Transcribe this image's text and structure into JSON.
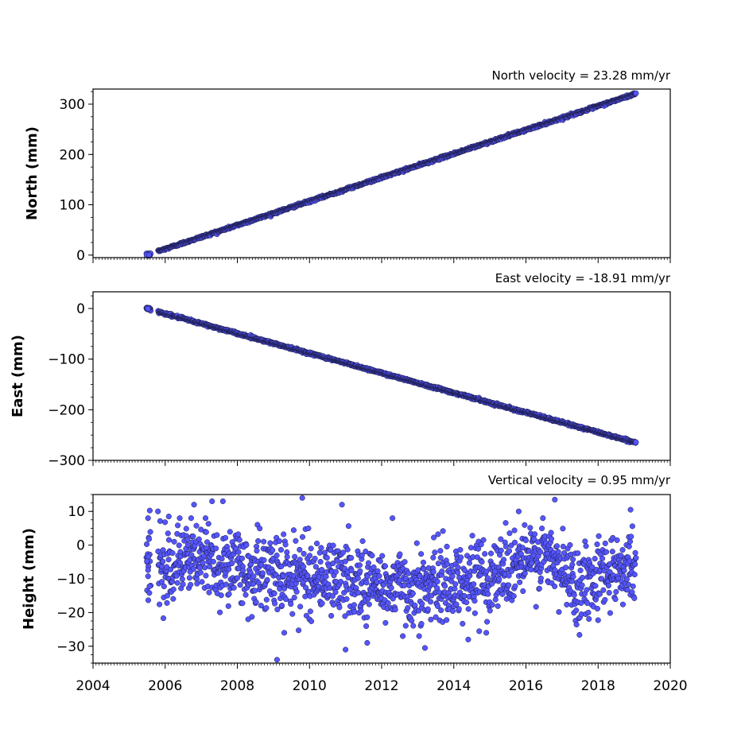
{
  "colors": {
    "marker_fill": "#5555ff",
    "marker_edge": "#1a1a40",
    "axes": "#000000",
    "background": "#ffffff"
  },
  "x_tick_labels": [
    "2004",
    "2006",
    "2008",
    "2010",
    "2012",
    "2014",
    "2016",
    "2018",
    "2020"
  ],
  "chart_data": [
    {
      "type": "scatter",
      "title": "North velocity = 23.28 mm/yr",
      "xlabel": "",
      "ylabel": "North (mm)",
      "xlim": [
        2004,
        2020
      ],
      "ylim": [
        -5,
        330
      ],
      "yticks": [
        0,
        100,
        200,
        300
      ],
      "ytick_labels": [
        "0",
        "100",
        "200",
        "300"
      ],
      "x_start": 2005.48,
      "x_end": 2019.05,
      "trend": {
        "velocity_mm_per_yr": 23.28,
        "value_at_start": 0,
        "value_at_end": 321
      },
      "gap": [
        2005.6,
        2005.8
      ],
      "scatter_sd": 1.2,
      "grid": false,
      "legend": "none"
    },
    {
      "type": "scatter",
      "title": "East velocity = -18.91 mm/yr",
      "xlabel": "",
      "ylabel": "East (mm)",
      "xlim": [
        2004,
        2020
      ],
      "ylim": [
        -300,
        33
      ],
      "yticks": [
        0,
        -100,
        -200,
        -300
      ],
      "ytick_labels": [
        "0",
        "−100",
        "−200",
        "−300"
      ],
      "x_start": 2005.48,
      "x_end": 2019.05,
      "trend": {
        "velocity_mm_per_yr": -18.91,
        "value_at_start": 0,
        "value_at_end": -265
      },
      "gap": [
        2005.6,
        2005.8
      ],
      "scatter_sd": 1.2,
      "grid": false,
      "legend": "none"
    },
    {
      "type": "scatter",
      "title": "Vertical velocity = 0.95 mm/yr",
      "xlabel": "",
      "ylabel": "Height (mm)",
      "xlim": [
        2004,
        2020
      ],
      "ylim": [
        -35,
        15
      ],
      "yticks": [
        10,
        0,
        -10,
        -20,
        -30
      ],
      "ytick_labels": [
        "10",
        "0",
        "−10",
        "−20",
        "−30"
      ],
      "x_start": 2005.48,
      "x_end": 2019.05,
      "trend": {
        "velocity_mm_per_yr": 0.95
      },
      "gap": [
        2005.6,
        2005.8
      ],
      "scatter_sd": 5.5,
      "height_mean_profile": [
        [
          2005.5,
          -6
        ],
        [
          2007,
          -4
        ],
        [
          2008.5,
          -8
        ],
        [
          2010,
          -9
        ],
        [
          2011,
          -10
        ],
        [
          2012,
          -12
        ],
        [
          2013,
          -13
        ],
        [
          2014,
          -11
        ],
        [
          2015,
          -9
        ],
        [
          2015.6,
          -6
        ],
        [
          2016.5,
          -3
        ],
        [
          2017,
          -8
        ],
        [
          2017.5,
          -12
        ],
        [
          2018,
          -8
        ],
        [
          2019,
          -6
        ]
      ],
      "outliers": [
        [
          2005.8,
          10
        ],
        [
          2006.1,
          8.5
        ],
        [
          2006.8,
          12
        ],
        [
          2007.3,
          13
        ],
        [
          2007.6,
          13
        ],
        [
          2009.8,
          14
        ],
        [
          2010.9,
          12
        ],
        [
          2012.3,
          8
        ],
        [
          2015.8,
          10
        ],
        [
          2016.8,
          13.5
        ],
        [
          2018.9,
          10.5
        ],
        [
          2009.1,
          -34
        ],
        [
          2008.3,
          -22
        ],
        [
          2009.3,
          -26
        ],
        [
          2011.0,
          -31
        ],
        [
          2011.6,
          -29
        ],
        [
          2013.2,
          -30.5
        ],
        [
          2014.4,
          -28
        ],
        [
          2014.9,
          -26
        ]
      ],
      "grid": false,
      "legend": "none"
    }
  ]
}
